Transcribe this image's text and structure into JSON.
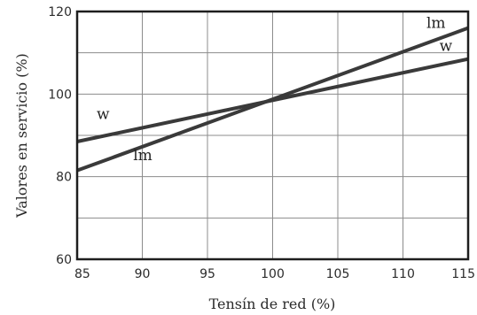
{
  "chart_data": {
    "type": "line",
    "title": "",
    "xlabel": "Tensín de red (%)",
    "ylabel": "Valores en servicio (%)",
    "xlim": [
      85,
      115
    ],
    "ylim": [
      60,
      120
    ],
    "xticks": [
      85,
      90,
      95,
      100,
      105,
      110,
      115
    ],
    "yticks": [
      60,
      80,
      100,
      120
    ],
    "grid": true,
    "series": [
      {
        "name": "lm",
        "x": [
          85,
          115
        ],
        "y": [
          81.5,
          116
        ],
        "color": "#3a3a3a"
      },
      {
        "name": "w",
        "x": [
          85,
          115
        ],
        "y": [
          88.5,
          108.5
        ],
        "color": "#3a3a3a"
      }
    ],
    "annotations": [
      {
        "text": "w",
        "x": 86.5,
        "y": 94
      },
      {
        "text": "lm",
        "x": 89.3,
        "y": 84
      },
      {
        "text": "lm",
        "x": 111.8,
        "y": 116
      },
      {
        "text": "w",
        "x": 112.8,
        "y": 110.5
      }
    ]
  }
}
